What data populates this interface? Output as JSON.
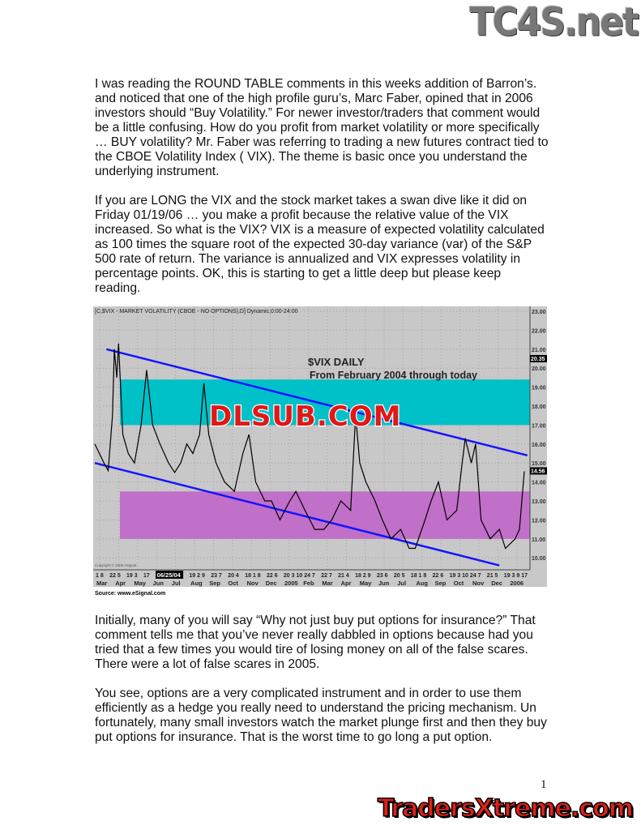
{
  "header_logo": "TC4S.net",
  "paragraphs": [
    [
      "I was reading the ROUND TABLE comments in this weeks addition of Barron’s.",
      "and noticed that one of the high profile guru’s, Marc Faber, opined that in 2006",
      "investors should “Buy Volatility.” For newer investor/traders that comment would",
      "be a little confusing. How do you profit from market volatility or more specifically",
      "… BUY volatility? Mr. Faber was referring to trading a new futures contract tied to",
      "the CBOE Volatility Index ( VIX). The theme is basic once you understand the",
      "underlying instrument."
    ],
    [
      " If you are LONG the VIX and the stock market takes a swan dive like it did on",
      "Friday 01/19/06 … you make a profit because the relative value of the VIX",
      "increased. So what is the VIX?  VIX is a measure of expected volatility calculated",
      "as 100 times the square root of the expected 30-day variance (var) of the S&P",
      "500 rate of return. The variance is annualized and VIX expresses volatility in",
      "percentage points. OK, this is starting to get a little deep but please keep",
      "reading."
    ],
    [
      "Initially, many of you will say “Why not just buy put options for insurance?” That",
      "comment tells me that you’ve never really dabbled in options because had you",
      "tried that a few times you would tire of losing money on all of the false scares.",
      "There were a lot of false scares in 2005."
    ],
    [
      "You see, options are a very complicated instrument and in order to use them",
      "efficiently as a hedge you really need to understand the pricing mechanism. Un",
      "fortunately, many small investors watch the market plunge first and then they buy",
      "put options for insurance. That is the worst time to go long a put option."
    ]
  ],
  "page_number": "1",
  "footer_logo": "TradersXtreme.com",
  "chart_data": {
    "type": "line",
    "header": "[C,$VIX - MARKET VOLATILITY (CBOE - NO OPTIONS),D] Dynamic,0:00-24:00",
    "annotation_title": "$VIX DAILY",
    "annotation_subtitle": "From February 2004 through today",
    "watermark": "DLSUB.COM",
    "copyright": "Copyright © 2005 eSignal",
    "source": "Source: www.eSignal.com",
    "date_marker": "06/25/04",
    "last_value_label": "14.56",
    "crosshair_value_label": "20.35",
    "ylim": [
      9.5,
      23.3
    ],
    "yticks": [
      "23.00",
      "22.00",
      "21.00",
      "20.00",
      "19.00",
      "18.00",
      "17.00",
      "16.00",
      "15.00",
      "14.00",
      "13.00",
      "12.00",
      "11.00",
      "10.00"
    ],
    "xtick_days": [
      "1 8",
      "22 5",
      "19 3",
      "17",
      "",
      "19 2 9",
      "23 7",
      "20 4",
      "18 1 8",
      "22 6",
      "20 3 10 24 7",
      "22 7",
      "21 4",
      "18 2 9",
      "23 6",
      "20 5",
      "18 1 8",
      "22 6",
      "19 3 10 24 7",
      "21 5",
      "19 3 9 17"
    ],
    "xtick_months": [
      "Mar",
      "Apr",
      "May",
      "Jun",
      "Jul",
      "Aug",
      "Sep",
      "Oct",
      "Nov",
      "Dec",
      "2005",
      "Feb",
      "Mar",
      "Apr",
      "May",
      "Jun",
      "Jul",
      "Aug",
      "Sep",
      "Oct",
      "Nov",
      "Dec",
      "2006"
    ],
    "bands": [
      {
        "from": 17,
        "to": 19.4,
        "color": "#00c0c8"
      },
      {
        "from": 11,
        "to": 13.5,
        "color": "#c070c8"
      }
    ],
    "trendlines": [
      {
        "start": [
          "2004-03-05",
          21.0
        ],
        "end": [
          "2006-01-25",
          15.4
        ],
        "color": "#1414ff"
      },
      {
        "start": [
          "2004-02-15",
          15.0
        ],
        "end": [
          "2005-12-10",
          9.6
        ],
        "color": "#1414ff"
      }
    ],
    "series": {
      "color": "#000000",
      "points": [
        [
          "2004-02-15",
          16.0
        ],
        [
          "2004-03-01",
          15.0
        ],
        [
          "2004-03-08",
          14.6
        ],
        [
          "2004-03-15",
          17.5
        ],
        [
          "2004-03-18",
          21.0
        ],
        [
          "2004-03-22",
          19.5
        ],
        [
          "2004-03-25",
          21.3
        ],
        [
          "2004-04-01",
          16.5
        ],
        [
          "2004-04-10",
          15.5
        ],
        [
          "2004-04-20",
          15.0
        ],
        [
          "2004-05-01",
          17.0
        ],
        [
          "2004-05-10",
          19.9
        ],
        [
          "2004-05-20",
          17.0
        ],
        [
          "2004-06-01",
          16.0
        ],
        [
          "2004-06-15",
          15.0
        ],
        [
          "2004-06-25",
          14.5
        ],
        [
          "2004-07-05",
          15.0
        ],
        [
          "2004-07-15",
          16.0
        ],
        [
          "2004-07-25",
          15.5
        ],
        [
          "2004-08-05",
          16.5
        ],
        [
          "2004-08-12",
          19.2
        ],
        [
          "2004-08-20",
          16.5
        ],
        [
          "2004-09-01",
          15.0
        ],
        [
          "2004-09-15",
          14.0
        ],
        [
          "2004-10-01",
          13.5
        ],
        [
          "2004-10-15",
          15.5
        ],
        [
          "2004-10-25",
          16.5
        ],
        [
          "2004-11-05",
          14.0
        ],
        [
          "2004-11-20",
          13.0
        ],
        [
          "2004-12-01",
          13.0
        ],
        [
          "2004-12-15",
          12.0
        ],
        [
          "2004-12-31",
          13.0
        ],
        [
          "2005-01-10",
          13.5
        ],
        [
          "2005-01-25",
          12.5
        ],
        [
          "2005-02-10",
          11.5
        ],
        [
          "2005-02-25",
          11.5
        ],
        [
          "2005-03-10",
          12.0
        ],
        [
          "2005-03-25",
          13.0
        ],
        [
          "2005-04-10",
          12.5
        ],
        [
          "2005-04-18",
          17.5
        ],
        [
          "2005-04-25",
          15.0
        ],
        [
          "2005-05-05",
          14.0
        ],
        [
          "2005-05-20",
          13.0
        ],
        [
          "2005-06-01",
          12.0
        ],
        [
          "2005-06-15",
          11.0
        ],
        [
          "2005-07-01",
          11.5
        ],
        [
          "2005-07-15",
          10.5
        ],
        [
          "2005-07-25",
          10.5
        ],
        [
          "2005-08-10",
          12.0
        ],
        [
          "2005-08-20",
          13.0
        ],
        [
          "2005-09-01",
          14.0
        ],
        [
          "2005-09-15",
          12.0
        ],
        [
          "2005-10-01",
          12.5
        ],
        [
          "2005-10-10",
          15.0
        ],
        [
          "2005-10-15",
          16.3
        ],
        [
          "2005-10-25",
          15.0
        ],
        [
          "2005-11-01",
          16.0
        ],
        [
          "2005-11-10",
          12.0
        ],
        [
          "2005-11-25",
          11.0
        ],
        [
          "2005-12-10",
          11.5
        ],
        [
          "2005-12-20",
          10.5
        ],
        [
          "2006-01-05",
          11.0
        ],
        [
          "2006-01-12",
          11.5
        ],
        [
          "2006-01-20",
          14.56
        ]
      ]
    }
  }
}
